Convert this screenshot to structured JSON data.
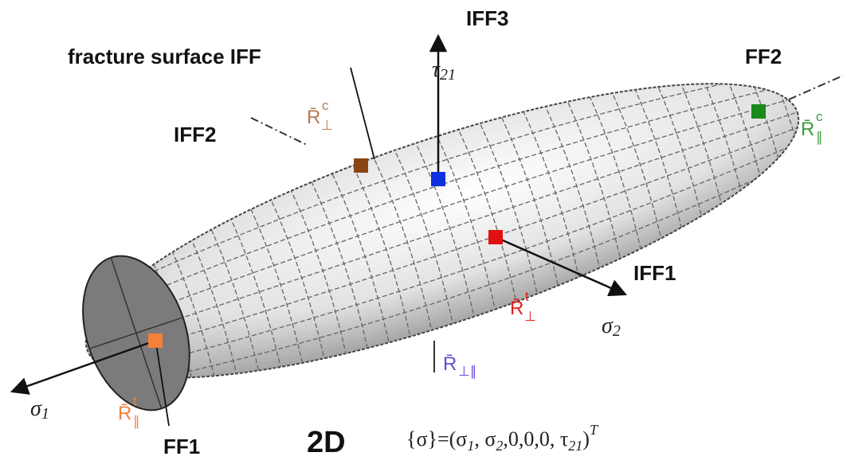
{
  "labels": {
    "iff3": "IFF3",
    "tau21": {
      "symbol": "τ",
      "sub": "21"
    },
    "fracture_surface": "fracture surface IFF",
    "ff2": "FF2",
    "iff2": "IFF2",
    "r_perp_c": {
      "symbol": "R̄",
      "sup": "c",
      "sub": "⊥"
    },
    "r_par_c": {
      "symbol": "R̄",
      "sup": "c",
      "sub": "∥"
    },
    "iff1": "IFF1",
    "r_perp_t": {
      "symbol": "R̄",
      "sup": "t",
      "sub": "⊥"
    },
    "sigma2": {
      "symbol": "σ",
      "sub": "2"
    },
    "r_perp_par": {
      "symbol": "R̄",
      "sub": "⊥∥"
    },
    "sigma1": {
      "symbol": "σ",
      "sub": "1"
    },
    "r_par_t": {
      "symbol": "R̄",
      "sup": "t",
      "sub": "∥"
    },
    "ff1": "FF1",
    "dim": "2D"
  },
  "formula": [
    {
      "text": "{σ}=(σ"
    },
    {
      "sub": "1"
    },
    {
      "text": ", σ"
    },
    {
      "sub": "2"
    },
    {
      "text": ",0,0,0, τ"
    },
    {
      "sub": "21"
    },
    {
      "text": ")"
    },
    {
      "sup": "T"
    }
  ]
}
